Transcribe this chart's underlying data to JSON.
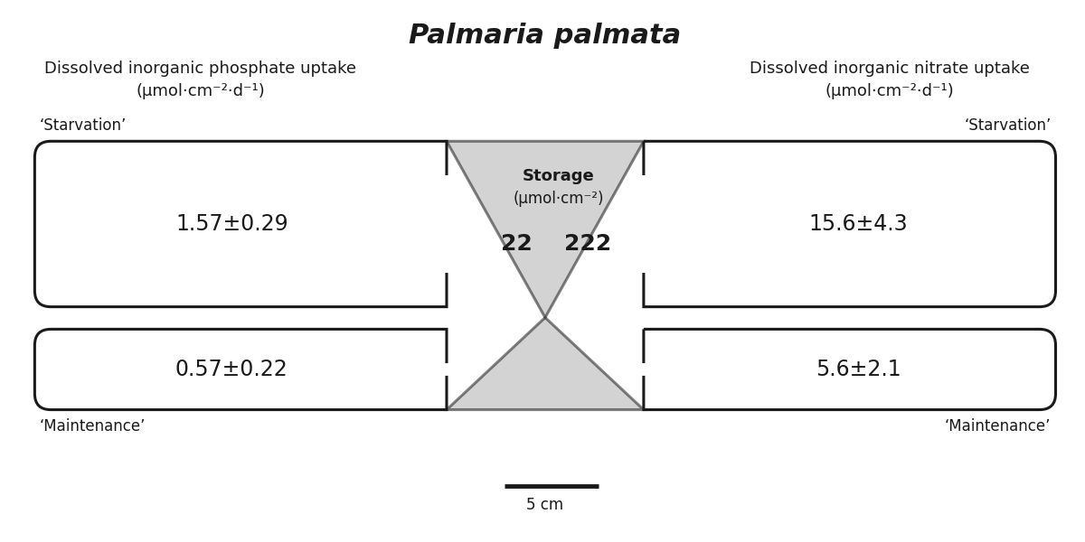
{
  "title": "Palmaria palmata",
  "left_label_line1": "Dissolved inorganic phosphate uptake",
  "left_label_line2": "(μmol·cm⁻²·d⁻¹)",
  "right_label_line1": "Dissolved inorganic nitrate uptake",
  "right_label_line2": "(μmol·cm⁻²·d⁻¹)",
  "left_starvation_value": "1.57±0.29",
  "right_starvation_value": "15.6±4.3",
  "left_maintenance_value": "0.57±0.22",
  "right_maintenance_value": "5.6±2.1",
  "storage_label": "Storage",
  "storage_unit": "(μmol·cm⁻²)",
  "left_storage_value": "22",
  "right_storage_value": "222",
  "starvation_label": "‘Starvation’",
  "maintenance_label": "‘Maintenance’",
  "scale_label": "5 cm",
  "bg_color": "#ffffff",
  "box_color": "#1a1a1a",
  "triangle_fill": "#b0b0b0",
  "triangle_alpha": 0.55,
  "text_color": "#1a1a1a",
  "lw": 2.2,
  "title_fontsize": 22,
  "label_fontsize": 13,
  "value_fontsize": 17,
  "storage_fontsize": 13,
  "storage_val_fontsize": 18,
  "tag_fontsize": 12
}
